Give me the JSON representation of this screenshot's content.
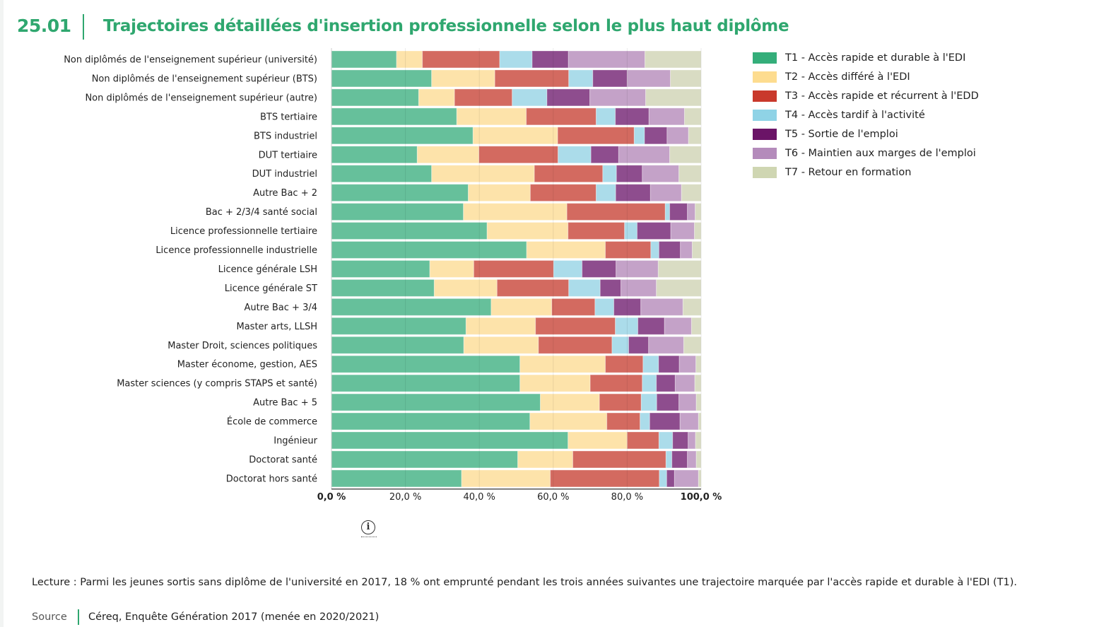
{
  "header": {
    "number": "25.01",
    "title": "Trajectoires détaillées d'insertion professionnelle selon le plus haut diplôme"
  },
  "chart_data": {
    "type": "bar",
    "orientation": "horizontal",
    "stacked": true,
    "xlim": [
      0,
      100
    ],
    "x_ticks": [
      "0,0 %",
      "20,0 %",
      "40,0 %",
      "60,0 %",
      "80,0 %",
      "100,0 %"
    ],
    "grid": true,
    "legend_position": "right",
    "categories": [
      "Non diplômés de l'enseignement supérieur (université)",
      "Non diplômés de l'enseignement supérieur (BTS)",
      "Non diplômés de l'enseignement supérieur (autre)",
      "BTS tertiaire",
      "BTS industriel",
      "DUT tertiaire",
      "DUT industriel",
      "Autre Bac + 2",
      "Bac + 2/3/4 santé social",
      "Licence professionnelle tertiaire",
      "Licence professionnelle industrielle",
      "Licence générale LSH",
      "Licence générale ST",
      "Autre Bac + 3/4",
      "Master arts, LLSH",
      "Master Droit, sciences politiques",
      "Master économe, gestion, AES",
      "Master sciences (y compris STAPS et santé)",
      "Autre Bac + 5",
      "École de commerce",
      "Ingénieur",
      "Doctorat santé",
      "Doctorat hors santé"
    ],
    "series": [
      {
        "name": "T1 - Accès rapide et durable à l'EDI",
        "color": "#34ae7a",
        "values": [
          17.6,
          27.1,
          23.6,
          33.9,
          38.3,
          23.2,
          27.1,
          37.0,
          35.7,
          42.1,
          52.8,
          26.6,
          27.8,
          43.2,
          36.4,
          35.8,
          51.0,
          51.0,
          56.5,
          53.7,
          64.0,
          50.4,
          35.2
        ]
      },
      {
        "name": "T2 - Accès différé à l'EDI",
        "color": "#fddc8f",
        "values": [
          7.0,
          17.1,
          9.7,
          18.8,
          22.9,
          16.7,
          27.8,
          16.8,
          28.0,
          21.9,
          21.3,
          11.9,
          17.0,
          16.4,
          18.8,
          20.2,
          23.1,
          19.0,
          16.0,
          20.8,
          16.0,
          14.9,
          24.0
        ]
      },
      {
        "name": "T3 - Accès rapide et récurrent à l'EDD",
        "color": "#c9392c",
        "values": [
          20.9,
          20.0,
          15.6,
          18.9,
          20.7,
          21.4,
          18.5,
          17.8,
          26.6,
          15.3,
          12.3,
          21.6,
          19.4,
          11.7,
          21.6,
          19.9,
          10.2,
          14.1,
          11.3,
          9.0,
          8.6,
          25.2,
          29.5
        ]
      },
      {
        "name": "T4 - Accès tardif à l'activité",
        "color": "#8fd3e6",
        "values": [
          8.8,
          6.5,
          9.4,
          5.2,
          2.8,
          8.9,
          3.7,
          5.3,
          1.2,
          3.4,
          2.2,
          7.7,
          8.5,
          5.1,
          6.1,
          4.5,
          4.2,
          3.8,
          4.2,
          2.6,
          3.7,
          1.6,
          2.0
        ]
      },
      {
        "name": "T5 - Sortie de l'emploi",
        "color": "#6b1467",
        "values": [
          9.8,
          9.3,
          11.6,
          9.1,
          6.1,
          7.5,
          7.0,
          9.4,
          4.8,
          9.1,
          5.8,
          9.2,
          5.6,
          7.3,
          7.2,
          5.4,
          5.6,
          5.1,
          6.0,
          8.2,
          4.2,
          4.2,
          2.1
        ]
      },
      {
        "name": "T6 - Maintien aux marges de l'emploi",
        "color": "#b48bbb",
        "values": [
          20.7,
          11.7,
          15.1,
          9.6,
          5.8,
          13.8,
          9.9,
          8.4,
          2.1,
          6.4,
          3.2,
          11.4,
          9.6,
          11.4,
          7.3,
          9.5,
          4.5,
          5.3,
          4.7,
          5.0,
          2.0,
          2.4,
          6.5
        ]
      },
      {
        "name": "T7 - Retour en formation",
        "color": "#cfd6b2",
        "values": [
          15.2,
          8.3,
          15.0,
          4.5,
          3.4,
          8.5,
          6.0,
          5.3,
          1.6,
          1.8,
          2.4,
          11.6,
          12.1,
          4.9,
          2.6,
          4.7,
          1.4,
          1.7,
          1.3,
          0.7,
          1.5,
          1.3,
          0.7
        ]
      }
    ]
  },
  "info_icon": "info-circle-icon",
  "footer": {
    "lecture": "Lecture : Parmi les jeunes sortis sans diplôme de l'université en 2017, 18 % ont emprunté pendant les trois années suivantes une trajectoire marquée par l'accès rapide et durable à l'EDI (T1).",
    "source_label": "Source",
    "source": "Céreq, Enquête Génération 2017 (menée en 2020/2021)"
  }
}
